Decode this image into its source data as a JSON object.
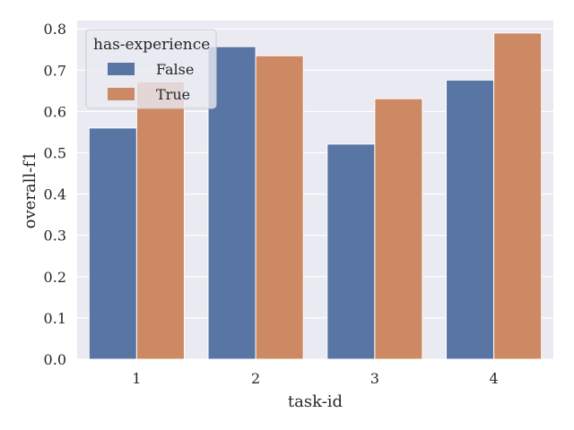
{
  "chart_data": {
    "type": "bar",
    "categories": [
      "1",
      "2",
      "3",
      "4"
    ],
    "series": [
      {
        "name": "False",
        "values": [
          0.56,
          0.757,
          0.521,
          0.676
        ],
        "color": "#5875a4"
      },
      {
        "name": "True",
        "values": [
          0.672,
          0.735,
          0.631,
          0.79
        ],
        "color": "#cc8963"
      }
    ],
    "xlabel": "task-id",
    "ylabel": "overall-f1",
    "ylim": [
      0,
      0.8
    ],
    "yticks": [
      "0.0",
      "0.1",
      "0.2",
      "0.3",
      "0.4",
      "0.5",
      "0.6",
      "0.7",
      "0.8"
    ],
    "legend": {
      "title": "has-experience",
      "placement": "top-left"
    },
    "grid": true,
    "background_color": "#eaeaf2",
    "grid_color": "#ffffff"
  }
}
